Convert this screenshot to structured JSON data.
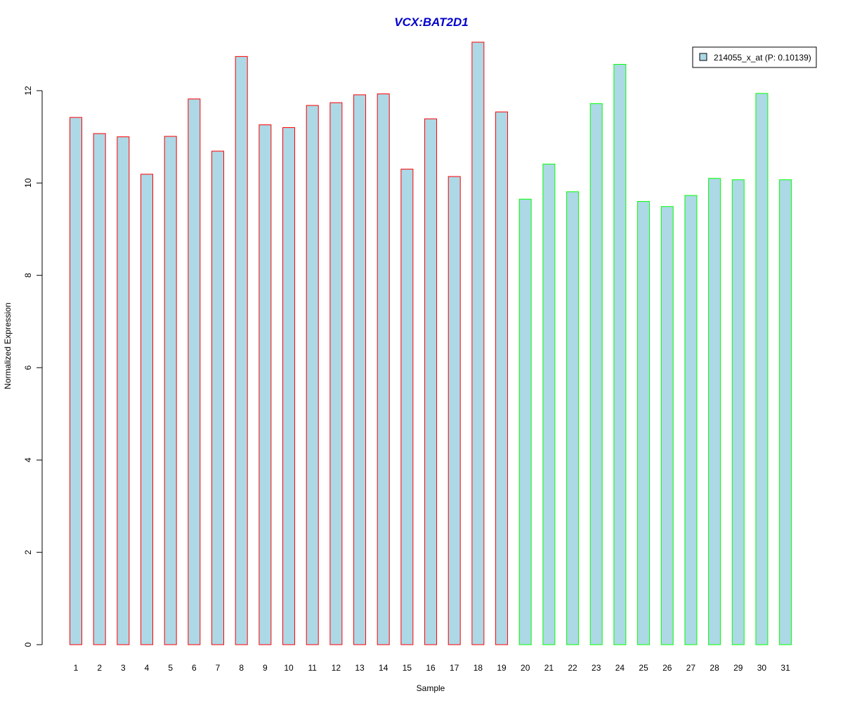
{
  "chart_data": {
    "type": "bar",
    "title": "VCX:BAT2D1",
    "xlabel": "Sample",
    "ylabel": "Normalized Expression",
    "ylim": [
      0,
      13.2
    ],
    "yticks": [
      0,
      2,
      4,
      6,
      8,
      10,
      12
    ],
    "grid": false,
    "legend": {
      "placement": "top-right",
      "entries": [
        {
          "label": "214055_x_at (P: 0.10139)",
          "color": "#add8e6"
        }
      ]
    },
    "categories": [
      "1",
      "2",
      "3",
      "4",
      "5",
      "6",
      "7",
      "8",
      "9",
      "10",
      "11",
      "12",
      "13",
      "14",
      "15",
      "16",
      "17",
      "18",
      "19",
      "20",
      "21",
      "22",
      "23",
      "24",
      "25",
      "26",
      "27",
      "28",
      "29",
      "30",
      "31"
    ],
    "values": [
      11.42,
      11.07,
      11.0,
      10.19,
      11.01,
      11.82,
      10.69,
      12.74,
      11.26,
      11.2,
      11.68,
      11.74,
      11.91,
      11.93,
      10.3,
      11.39,
      10.14,
      13.05,
      11.54,
      9.65,
      10.41,
      9.81,
      11.72,
      12.57,
      9.6,
      9.49,
      9.73,
      10.1,
      10.07,
      11.94,
      10.07
    ],
    "groups": [
      1,
      1,
      1,
      1,
      1,
      1,
      1,
      1,
      1,
      1,
      1,
      1,
      1,
      1,
      1,
      1,
      1,
      1,
      1,
      2,
      2,
      2,
      2,
      2,
      2,
      2,
      2,
      2,
      2,
      2,
      2
    ],
    "colors": {
      "fill": "#add8e6",
      "group1_border": "#ff0000",
      "group2_border": "#00ff00",
      "title": "#0000cc"
    }
  }
}
